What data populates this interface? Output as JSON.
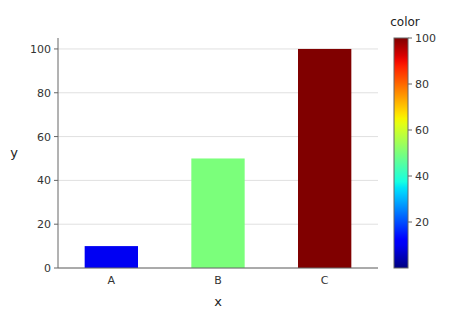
{
  "chart_data": {
    "type": "bar",
    "categories": [
      "A",
      "B",
      "C"
    ],
    "values": [
      10,
      50,
      100
    ],
    "color_values": [
      10,
      50,
      100
    ],
    "xlabel": "x",
    "ylabel": "y",
    "ylim": [
      0,
      105
    ],
    "yticks": [
      0,
      20,
      40,
      60,
      80,
      100
    ],
    "grid": true,
    "colorbar_label": "color",
    "colorbar_lim": [
      0,
      100
    ],
    "colorbar_ticks": [
      20,
      40,
      60,
      80,
      100
    ]
  }
}
